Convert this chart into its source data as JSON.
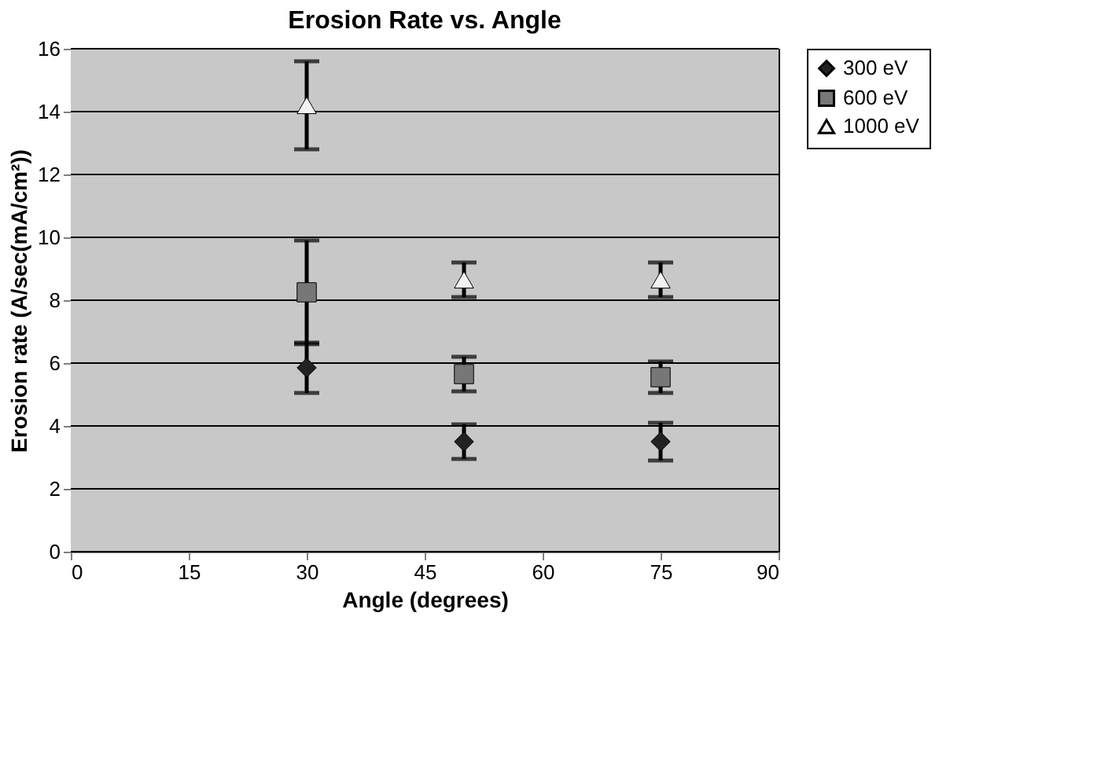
{
  "chart_data": {
    "type": "scatter",
    "title": "Erosion Rate vs. Angle",
    "xlabel": "Angle (degrees)",
    "ylabel": "Erosion rate (A/sec(mA/cm²))",
    "x": [
      30,
      50,
      75
    ],
    "series": [
      {
        "name": "300 eV",
        "color": "#222222",
        "marker": "diamond",
        "values": [
          5.85,
          3.5,
          3.5
        ],
        "errors": [
          0.8,
          0.55,
          0.6
        ]
      },
      {
        "name": "600 eV",
        "color": "#777777",
        "marker": "square",
        "values": [
          8.25,
          5.65,
          5.55
        ],
        "errors": [
          1.65,
          0.55,
          0.5
        ]
      },
      {
        "name": "1000 eV",
        "color": "#f2f2f2",
        "marker": "triangle",
        "values": [
          14.2,
          8.65,
          8.65
        ],
        "errors": [
          1.4,
          0.55,
          0.55
        ]
      }
    ],
    "xlim": [
      0,
      90
    ],
    "xticks": [
      0,
      15,
      30,
      45,
      60,
      75,
      90
    ],
    "ylim": [
      0,
      16
    ],
    "yticks": [
      0,
      2,
      4,
      6,
      8,
      10,
      12,
      14,
      16
    ],
    "grid": "y",
    "legend": "right"
  }
}
